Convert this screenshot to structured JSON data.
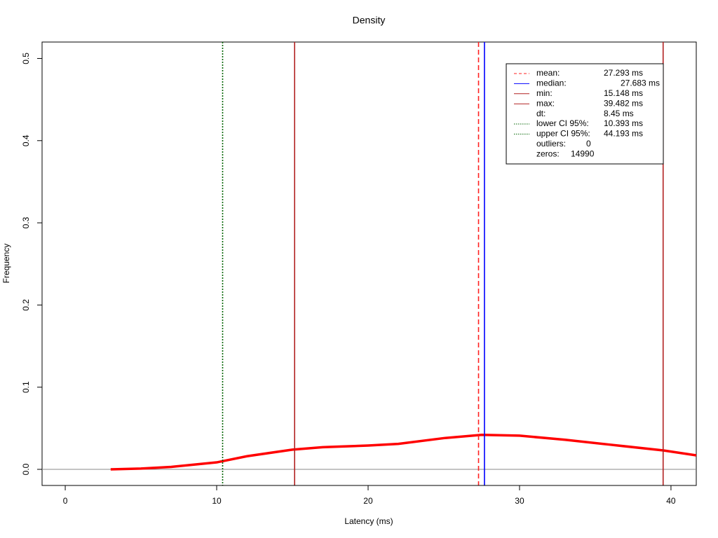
{
  "chart_data": {
    "type": "line",
    "title": "Density",
    "x_label": "Latency (ms)",
    "y_label": "Frequency",
    "x": [
      3,
      5,
      7,
      10,
      12,
      15,
      17,
      20,
      22,
      25,
      27.5,
      30,
      33,
      36,
      39.5,
      41.67
    ],
    "series": [
      {
        "name": "density",
        "color": "#ff0000",
        "values": [
          0,
          0.001,
          0.003,
          0.0085,
          0.016,
          0.024,
          0.027,
          0.029,
          0.031,
          0.038,
          0.042,
          0.041,
          0.036,
          0.03,
          0.023,
          0.017
        ]
      }
    ],
    "xlim": [
      -1.53,
      41.67
    ],
    "ylim": [
      -0.0196,
      0.52
    ],
    "xticks": [
      0,
      10,
      20,
      30,
      40
    ],
    "yticks": [
      {
        "value": 0,
        "label": "0.0"
      },
      0.1,
      0.2,
      0.3,
      0.4,
      0.5
    ],
    "vlines": [
      {
        "name": "mean:",
        "value": 27.293,
        "value_label": "27.293 ms",
        "color": "#ff2020",
        "dash": "7,4"
      },
      {
        "name": "median:",
        "value": 27.683,
        "value_label": "27.683 ms",
        "color": "#0000ff",
        "dash": "none"
      },
      {
        "name": "min:",
        "value": 15.148,
        "value_label": "15.148 ms",
        "color": "#b22222",
        "dash": "none"
      },
      {
        "name": "max:",
        "value": 39.482,
        "value_label": "39.482 ms",
        "color": "#b22222",
        "dash": "none"
      },
      {
        "name": "lower CI 95%:",
        "value": 10.393,
        "value_label": "10.393 ms",
        "color": "#006400",
        "dash": "2,2"
      },
      {
        "name": "upper CI 95%:",
        "value": 44.193,
        "value_label": "44.193 ms",
        "color": "#006400",
        "dash": "2,2"
      }
    ],
    "dt": {
      "name": "dt:",
      "label": "8.45 ms"
    },
    "outliers": {
      "name": "outliers:",
      "value": 0
    },
    "zeros": {
      "name": "zeros:",
      "value": 14990
    }
  }
}
